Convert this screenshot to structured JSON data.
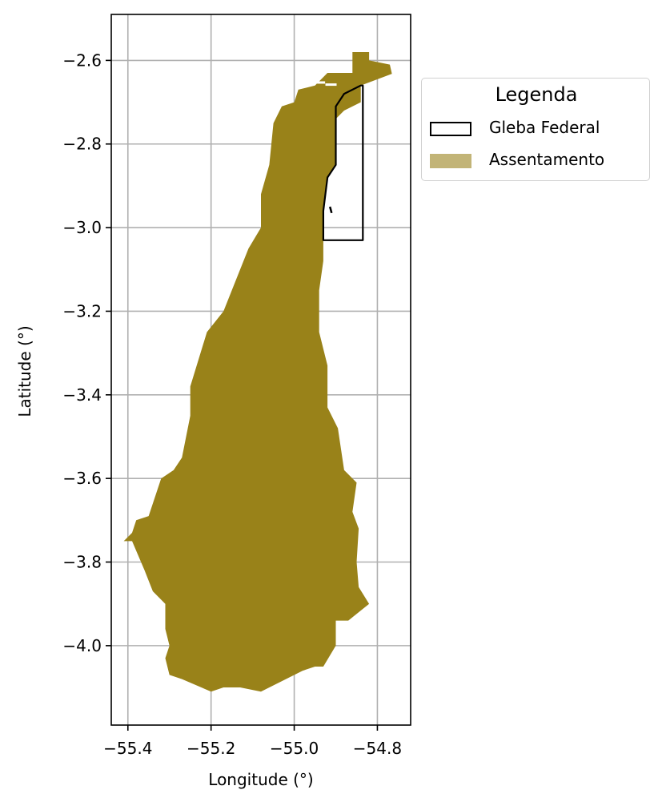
{
  "chart_data": {
    "type": "map",
    "xlabel": "Longitude (°)",
    "ylabel": "Latitude (°)",
    "xlim": [
      -55.44,
      -54.72
    ],
    "ylim": [
      -4.19,
      -2.49
    ],
    "xticks": [
      -55.4,
      -55.2,
      -55.0,
      -54.8
    ],
    "xtick_labels": [
      "−55.4",
      "−55.2",
      "−55.0",
      "−54.8"
    ],
    "yticks": [
      -2.6,
      -2.8,
      -3.0,
      -3.2,
      -3.4,
      -3.6,
      -3.8,
      -4.0
    ],
    "ytick_labels": [
      "−2.6",
      "−2.8",
      "−3.0",
      "−3.2",
      "−3.4",
      "−3.6",
      "−3.8",
      "−4.0"
    ],
    "grid": true,
    "legend_placement": "outside upper right",
    "legend": {
      "title": "Legenda",
      "items": [
        {
          "label": "Gleba Federal",
          "style": "outline",
          "color": "#000000"
        },
        {
          "label": "Assentamento",
          "style": "fill",
          "color": "#c2b477"
        }
      ]
    },
    "layers": [
      {
        "name": "Assentamento",
        "color": "#998219",
        "coordinates": [
          [
            -54.86,
            -2.58
          ],
          [
            -54.82,
            -2.58
          ],
          [
            -54.82,
            -2.6
          ],
          [
            -54.77,
            -2.61
          ],
          [
            -54.765,
            -2.632
          ],
          [
            -54.84,
            -2.66
          ],
          [
            -54.84,
            -2.7
          ],
          [
            -54.88,
            -2.72
          ],
          [
            -54.9,
            -2.74
          ],
          [
            -54.9,
            -2.85
          ],
          [
            -54.92,
            -2.88
          ],
          [
            -54.93,
            -2.96
          ],
          [
            -54.93,
            -3.0
          ],
          [
            -54.93,
            -3.08
          ],
          [
            -54.94,
            -3.15
          ],
          [
            -54.94,
            -3.25
          ],
          [
            -54.92,
            -3.33
          ],
          [
            -54.92,
            -3.43
          ],
          [
            -54.895,
            -3.48
          ],
          [
            -54.88,
            -3.58
          ],
          [
            -54.85,
            -3.61
          ],
          [
            -54.86,
            -3.68
          ],
          [
            -54.845,
            -3.72
          ],
          [
            -54.85,
            -3.8
          ],
          [
            -54.845,
            -3.86
          ],
          [
            -54.82,
            -3.9
          ],
          [
            -54.87,
            -3.94
          ],
          [
            -54.9,
            -3.94
          ],
          [
            -54.9,
            -4.0
          ],
          [
            -54.93,
            -4.05
          ],
          [
            -54.95,
            -4.05
          ],
          [
            -54.98,
            -4.06
          ],
          [
            -55.02,
            -4.08
          ],
          [
            -55.08,
            -4.11
          ],
          [
            -55.13,
            -4.1
          ],
          [
            -55.17,
            -4.1
          ],
          [
            -55.2,
            -4.11
          ],
          [
            -55.27,
            -4.08
          ],
          [
            -55.3,
            -4.07
          ],
          [
            -55.31,
            -4.03
          ],
          [
            -55.3,
            -4.0
          ],
          [
            -55.31,
            -3.96
          ],
          [
            -55.31,
            -3.9
          ],
          [
            -55.34,
            -3.87
          ],
          [
            -55.36,
            -3.82
          ],
          [
            -55.39,
            -3.75
          ],
          [
            -55.41,
            -3.75
          ],
          [
            -55.39,
            -3.73
          ],
          [
            -55.38,
            -3.7
          ],
          [
            -55.35,
            -3.69
          ],
          [
            -55.32,
            -3.6
          ],
          [
            -55.29,
            -3.58
          ],
          [
            -55.27,
            -3.55
          ],
          [
            -55.25,
            -3.45
          ],
          [
            -55.25,
            -3.38
          ],
          [
            -55.21,
            -3.25
          ],
          [
            -55.17,
            -3.2
          ],
          [
            -55.15,
            -3.15
          ],
          [
            -55.11,
            -3.05
          ],
          [
            -55.08,
            -3.0
          ],
          [
            -55.08,
            -2.92
          ],
          [
            -55.06,
            -2.85
          ],
          [
            -55.05,
            -2.75
          ],
          [
            -55.03,
            -2.71
          ],
          [
            -55.0,
            -2.7
          ],
          [
            -54.99,
            -2.67
          ],
          [
            -54.95,
            -2.66
          ],
          [
            -54.92,
            -2.63
          ],
          [
            -54.86,
            -2.63
          ]
        ]
      },
      {
        "name": "Gleba Federal",
        "color": "#000000",
        "coordinates": [
          [
            -54.84,
            -2.66
          ],
          [
            -54.88,
            -2.68
          ],
          [
            -54.9,
            -2.71
          ],
          [
            -54.9,
            -2.85
          ],
          [
            -54.92,
            -2.88
          ],
          [
            -54.93,
            -2.96
          ],
          [
            -54.93,
            -3.03
          ],
          [
            -54.835,
            -3.03
          ],
          [
            -54.835,
            -2.66
          ]
        ],
        "extra_stroke": [
          [
            -54.914,
            -2.95
          ],
          [
            -54.91,
            -2.965
          ]
        ]
      }
    ]
  }
}
